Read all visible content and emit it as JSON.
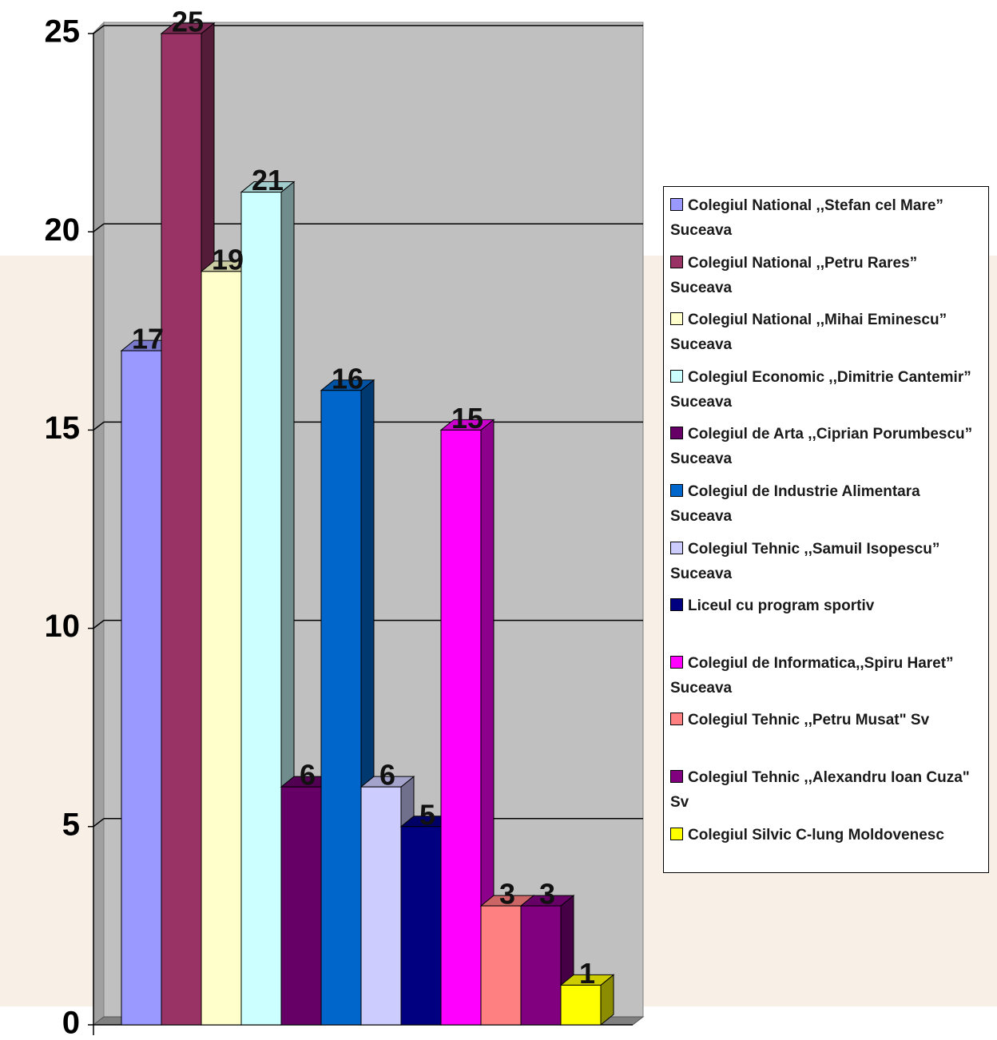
{
  "chart_data": {
    "type": "bar",
    "ylim": [
      0,
      25
    ],
    "yticks": [
      0,
      5,
      10,
      15,
      20,
      25
    ],
    "grid": true,
    "legend": "right",
    "series": [
      {
        "name": "Colegiul National ,,Stefan cel Mare” Suceava",
        "color": "#9999ff",
        "values": [
          17
        ]
      },
      {
        "name": "Colegiul National ,,Petru Rares” Suceava",
        "color": "#993366",
        "values": [
          25
        ]
      },
      {
        "name": "Colegiul National ,,Mihai Eminescu” Suceava",
        "color": "#ffffcc",
        "values": [
          19
        ]
      },
      {
        "name": "Colegiul Economic ,,Dimitrie Cantemir” Suceava",
        "color": "#ccffff",
        "values": [
          21
        ]
      },
      {
        "name": "Colegiul de Arta ,,Ciprian Porumbescu” Suceava",
        "color": "#660066",
        "values": [
          6
        ]
      },
      {
        "name": "Colegiul de Industrie Alimentara Suceava",
        "color": "#0066cc",
        "values": [
          16
        ]
      },
      {
        "name": "Colegiul Tehnic ,,Samuil Isopescu” Suceava",
        "color": "#ccccff",
        "values": [
          6
        ]
      },
      {
        "name": "Liceul cu program sportiv",
        "color": "#000080",
        "values": [
          5
        ]
      },
      {
        "name": "Colegiul de Informatica,,Spiru Haret” Suceava",
        "color": "#ff00ff",
        "values": [
          15
        ]
      },
      {
        "name": "Colegiul Tehnic ,,Petru Musat\" Sv",
        "color": "#ff8080",
        "values": [
          3
        ]
      },
      {
        "name": "Colegiul Tehnic ,,Alexandru Ioan Cuza\" Sv",
        "color": "#800080",
        "values": [
          3
        ]
      },
      {
        "name": "Colegiul Silvic C-lung Moldovenesc",
        "color": "#ffff00",
        "values": [
          1
        ]
      }
    ]
  }
}
